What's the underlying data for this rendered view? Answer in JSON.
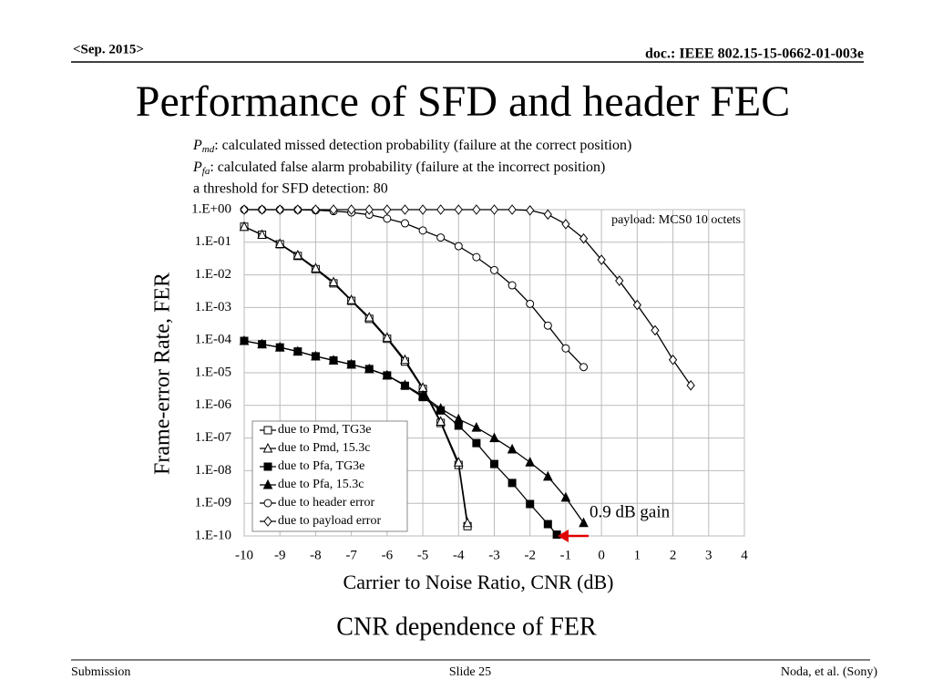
{
  "header": {
    "date": "<Sep. 2015>",
    "doc": "doc.: IEEE 802.15-15-0662-01-003e"
  },
  "title": "Performance of SFD and header FEC",
  "notes": [
    {
      "symbol": "P",
      "sub": "md",
      "text": ": calculated missed detection probability (failure at the correct position)"
    },
    {
      "symbol": "P",
      "sub": "fa",
      "text": ": calculated false alarm probability (failure at the incorrect position)"
    },
    {
      "text": "a threshold for SFD detection: 80"
    }
  ],
  "chart_data": {
    "type": "line",
    "x_label": "Carrier to Noise Ratio, CNR (dB)",
    "y_label": "Frame-error Rate, FER",
    "xlim": [
      -10,
      4
    ],
    "xticks": [
      -10,
      -9,
      -8,
      -7,
      -6,
      -5,
      -4,
      -3,
      -2,
      -1,
      0,
      1,
      2,
      3,
      4
    ],
    "ylim": [
      1e-10,
      1
    ],
    "log_y": true,
    "grid": true,
    "yticks": [
      {
        "value": 1,
        "label": "1.E+00"
      },
      {
        "value": 0.1,
        "label": "1.E-01"
      },
      {
        "value": 0.01,
        "label": "1.E-02"
      },
      {
        "value": 0.001,
        "label": "1.E-03"
      },
      {
        "value": 0.0001,
        "label": "1.E-04"
      },
      {
        "value": 1e-05,
        "label": "1.E-05"
      },
      {
        "value": 1e-06,
        "label": "1.E-06"
      },
      {
        "value": 1e-07,
        "label": "1.E-07"
      },
      {
        "value": 1e-08,
        "label": "1.E-08"
      },
      {
        "value": 1e-09,
        "label": "1.E-09"
      },
      {
        "value": 1e-10,
        "label": "1.E-10"
      }
    ],
    "legend": "lower-left",
    "series": [
      {
        "name": "due to Pmd, TG3e",
        "color": "#000000",
        "marker": "square",
        "filled": false,
        "x": [
          -10,
          -9.5,
          -9,
          -8.5,
          -8,
          -7.5,
          -7,
          -6.5,
          -6,
          -5.5,
          -5,
          -4.5,
          -4,
          -3.75
        ],
        "values": [
          0.3,
          0.17,
          0.087,
          0.038,
          0.015,
          0.0055,
          0.0016,
          0.00045,
          0.00011,
          2.2e-05,
          3.2e-06,
          2.9e-07,
          1.5e-08,
          2e-10
        ]
      },
      {
        "name": "due to Pmd, 15.3c",
        "color": "#000000",
        "marker": "triangle",
        "filled": false,
        "x": [
          -10,
          -9.5,
          -9,
          -8.5,
          -8,
          -7.5,
          -7,
          -6.5,
          -6,
          -5.5,
          -5,
          -4.5,
          -4,
          -3.75
        ],
        "values": [
          0.3,
          0.17,
          0.09,
          0.04,
          0.016,
          0.006,
          0.0017,
          0.0005,
          0.00012,
          2.5e-05,
          3.5e-06,
          3.2e-07,
          1.8e-08,
          2.5e-10
        ]
      },
      {
        "name": "due to Pfa, TG3e",
        "color": "#000000",
        "marker": "square",
        "filled": true,
        "x": [
          -10,
          -9.5,
          -9,
          -8.5,
          -8,
          -7.5,
          -7,
          -6.5,
          -6,
          -5.5,
          -5,
          -4.5,
          -4,
          -3.5,
          -3,
          -2.5,
          -2,
          -1.5,
          -1.25
        ],
        "values": [
          9.5e-05,
          7.5e-05,
          6e-05,
          4.5e-05,
          3.2e-05,
          2.4e-05,
          1.8e-05,
          1.3e-05,
          8.3e-06,
          4e-06,
          1.8e-06,
          7e-07,
          2.4e-07,
          7e-08,
          1.6e-08,
          4.2e-09,
          9.5e-10,
          2.3e-10,
          1.1e-10
        ]
      },
      {
        "name": "due to Pfa, 15.3c",
        "color": "#000000",
        "marker": "triangle",
        "filled": true,
        "x": [
          -10,
          -9.5,
          -9,
          -8.5,
          -8,
          -7.5,
          -7,
          -6.5,
          -6,
          -5.5,
          -5,
          -4.5,
          -4,
          -3.5,
          -3,
          -2.5,
          -2,
          -1.5,
          -1,
          -0.5
        ],
        "values": [
          9.5e-05,
          7.5e-05,
          6e-05,
          4.5e-05,
          3.2e-05,
          2.4e-05,
          1.8e-05,
          1.3e-05,
          8.3e-06,
          4.2e-06,
          2e-06,
          8e-07,
          3.8e-07,
          2.1e-07,
          1e-07,
          4.5e-08,
          1.8e-08,
          6.6e-09,
          1.5e-09,
          2.5e-10
        ]
      },
      {
        "name": "due to header error",
        "color": "#000000",
        "marker": "circle",
        "filled": false,
        "x": [
          -10,
          -9.5,
          -9,
          -8.5,
          -8,
          -7.5,
          -7,
          -6.5,
          -6,
          -5.5,
          -5,
          -4.5,
          -4,
          -3.5,
          -3,
          -2.5,
          -2,
          -1.5,
          -1,
          -0.5
        ],
        "values": [
          1,
          1,
          1,
          0.99,
          0.96,
          0.9,
          0.82,
          0.7,
          0.53,
          0.38,
          0.23,
          0.14,
          0.076,
          0.035,
          0.014,
          0.0048,
          0.0013,
          0.00028,
          5.6e-05,
          1.5e-05
        ]
      },
      {
        "name": "due to payload error",
        "color": "#000000",
        "marker": "diamond",
        "filled": false,
        "x": [
          -10,
          -9.5,
          -9,
          -8.5,
          -8,
          -7.5,
          -7,
          -6.5,
          -6,
          -5.5,
          -5,
          -4.5,
          -4,
          -3.5,
          -3,
          -2.5,
          -2,
          -1.5,
          -1,
          -0.5,
          0,
          0.5,
          1,
          1.5,
          2,
          2.5
        ],
        "values": [
          1,
          1,
          1,
          1,
          1,
          1,
          1,
          1,
          1,
          1,
          1,
          1,
          1,
          1,
          1,
          1,
          0.95,
          0.71,
          0.36,
          0.13,
          0.029,
          0.0066,
          0.0012,
          0.0002,
          2.5e-05,
          4.1e-06
        ]
      }
    ],
    "annotations": [
      {
        "text": "payload: MCS0 10 octets",
        "color": "#000000"
      },
      {
        "text": "0.9 dB gain",
        "color": "#e00000"
      }
    ]
  },
  "caption": "CNR dependence of FER",
  "footer": {
    "left": "Submission",
    "center": "Slide 25",
    "right": "Noda, et al. (Sony)"
  }
}
